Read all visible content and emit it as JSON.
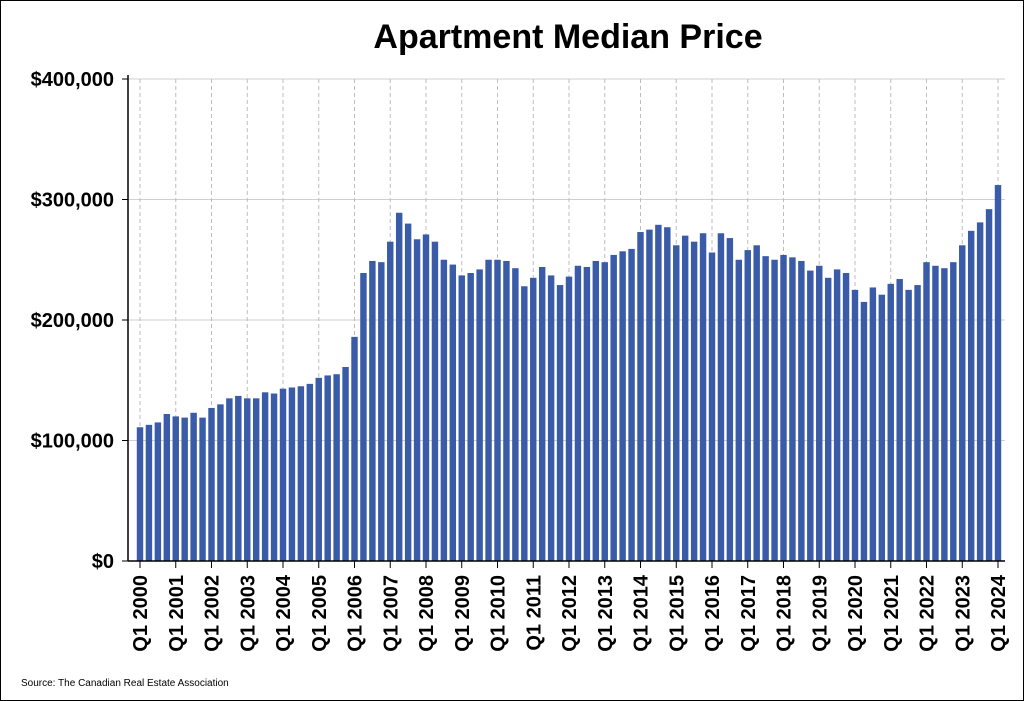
{
  "chart_data": {
    "type": "bar",
    "title": "Apartment Median Price",
    "xlabel": "",
    "ylabel": "",
    "ylim": [
      0,
      400000
    ],
    "yticks": [
      0,
      100000,
      200000,
      300000,
      400000
    ],
    "ytick_labels": [
      "$0",
      "$100,000",
      "$200,000",
      "$300,000",
      "$400,000"
    ],
    "xtick_labels": [
      "Q1 2000",
      "Q1 2001",
      "Q1 2002",
      "Q1 2003",
      "Q1 2004",
      "Q1 2005",
      "Q1 2006",
      "Q1 2007",
      "Q1 2008",
      "Q1 2009",
      "Q1 2010",
      "Q1 2011",
      "Q1 2012",
      "Q1 2013",
      "Q1 2014",
      "Q1 2015",
      "Q1 2016",
      "Q1 2017",
      "Q1 2018",
      "Q1 2019",
      "Q1 2020",
      "Q1 2021",
      "Q1 2022",
      "Q1 2023",
      "Q1 2024"
    ],
    "grid": "horizontal solid, vertical dashed",
    "bar_color": "#3a5ca8",
    "values": [
      111000,
      113000,
      115000,
      122000,
      120000,
      119000,
      123000,
      119000,
      127000,
      130000,
      135000,
      137000,
      135000,
      135000,
      140000,
      139000,
      143000,
      144000,
      145000,
      147000,
      152000,
      154000,
      155000,
      161000,
      186000,
      239000,
      249000,
      248000,
      265000,
      289000,
      280000,
      267000,
      271000,
      265000,
      250000,
      246000,
      237000,
      239000,
      242000,
      250000,
      250000,
      249000,
      243000,
      228000,
      235000,
      244000,
      237000,
      229000,
      236000,
      245000,
      244000,
      249000,
      248000,
      254000,
      257000,
      259000,
      273000,
      275000,
      279000,
      277000,
      262000,
      270000,
      265000,
      272000,
      256000,
      272000,
      268000,
      250000,
      258000,
      262000,
      253000,
      250000,
      254000,
      252000,
      249000,
      241000,
      245000,
      235000,
      242000,
      239000,
      225000,
      215000,
      227000,
      221000,
      230000,
      234000,
      225000,
      229000,
      248000,
      245000,
      243000,
      248000,
      262000,
      274000,
      281000,
      292000,
      312000
    ]
  },
  "source": "Source: The Canadian Real Estate Association"
}
